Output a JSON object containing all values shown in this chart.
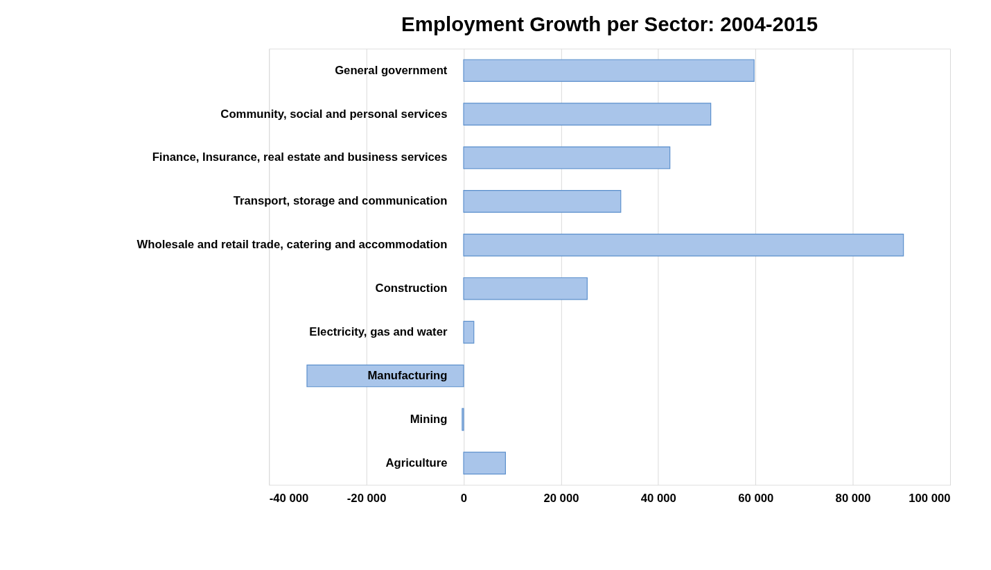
{
  "chart_data": {
    "type": "bar",
    "orientation": "horizontal",
    "title": "Employment Growth per Sector: 2004-2015",
    "categories": [
      "General government",
      "Community, social and personal services",
      "Finance, Insurance, real estate and business services",
      "Transport, storage and communication",
      "Wholesale and retail trade, catering and accommodation",
      "Construction",
      "Electricity, gas and water",
      "Manufacturing",
      "Mining",
      "Agriculture"
    ],
    "values": [
      59700,
      50800,
      42400,
      32300,
      90400,
      25400,
      2100,
      -32200,
      -300,
      8600
    ],
    "color": "#a9c5ea",
    "xlim": [
      -40000,
      100000
    ],
    "xticks": [
      {
        "value": -40000,
        "label": "-40 000"
      },
      {
        "value": -20000,
        "label": "-20 000"
      },
      0,
      {
        "value": 20000,
        "label": "20 000"
      },
      {
        "value": 40000,
        "label": "40 000"
      },
      {
        "value": 60000,
        "label": "60 000"
      },
      {
        "value": 80000,
        "label": "80 000"
      },
      {
        "value": 100000,
        "label": "100 000"
      }
    ],
    "grid": "x"
  }
}
